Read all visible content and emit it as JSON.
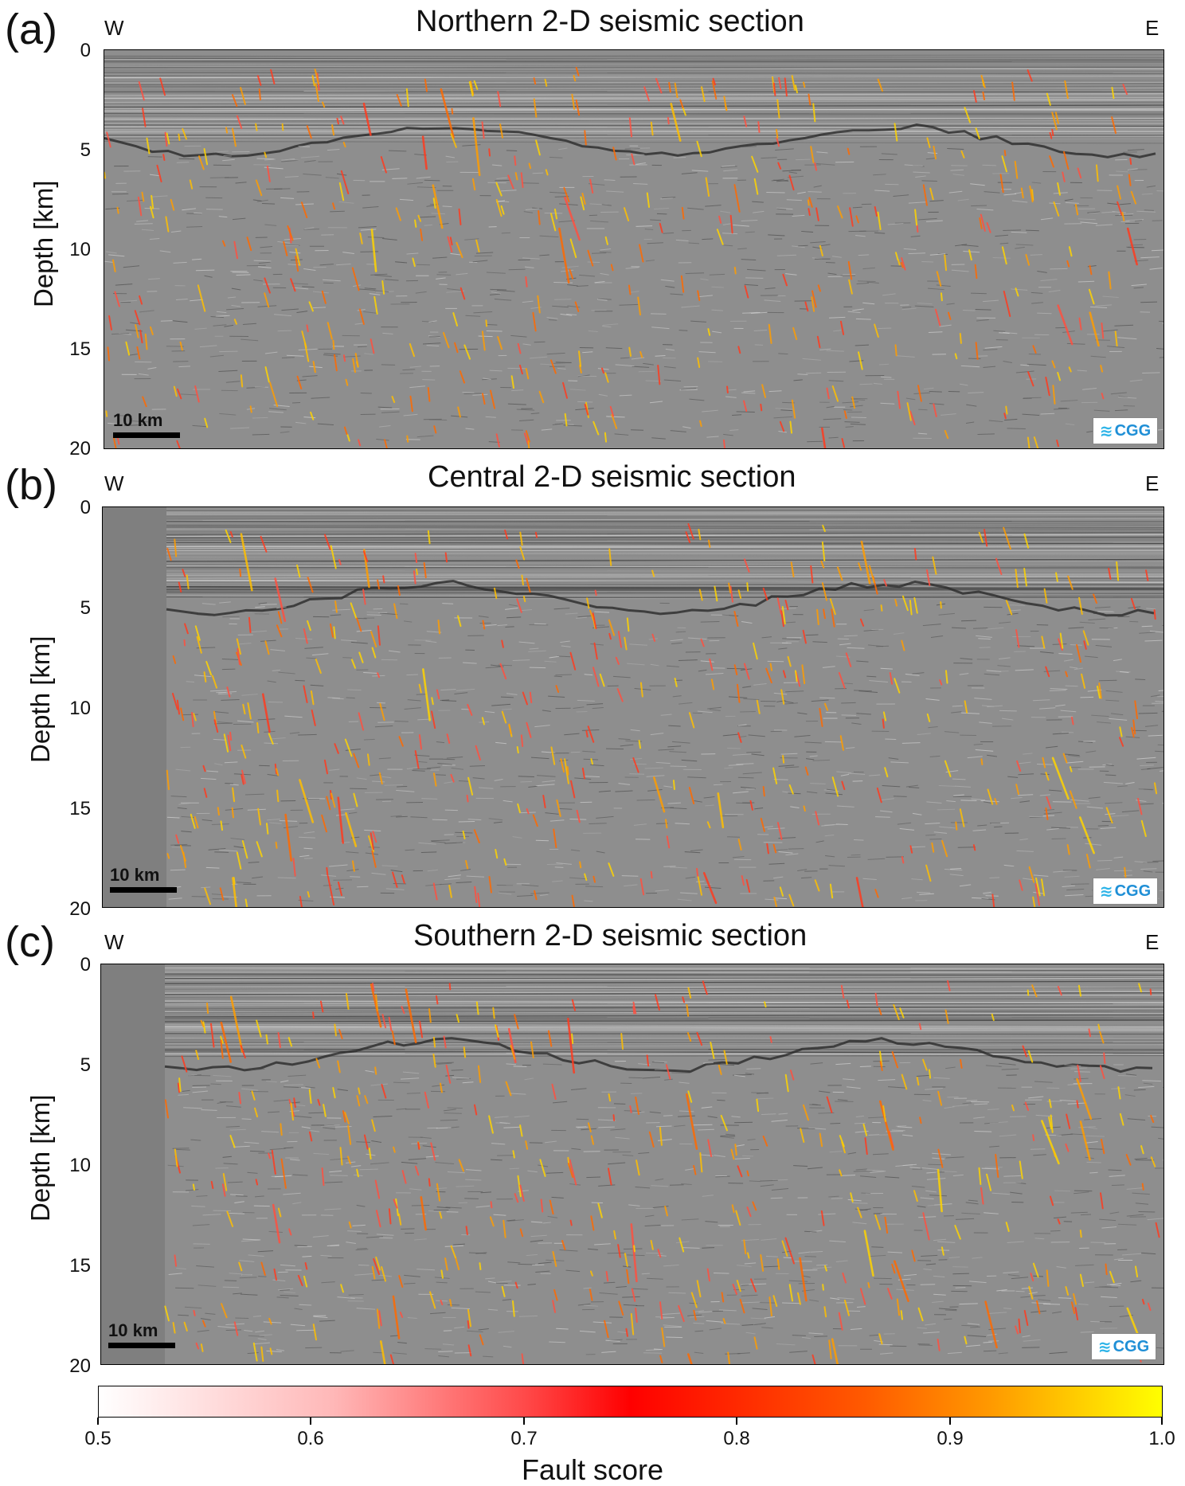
{
  "panels": [
    {
      "label": "(a)",
      "title": "Northern 2-D seismic section",
      "west": "W",
      "east": "E",
      "ylabel": "Depth [km]",
      "yticks": [
        "0",
        "5",
        "10",
        "15",
        "20"
      ],
      "scale_label": "10 km",
      "logo_text": "CGG"
    },
    {
      "label": "(b)",
      "title": "Central 2-D seismic section",
      "west": "W",
      "east": "E",
      "ylabel": "Depth [km]",
      "yticks": [
        "0",
        "5",
        "10",
        "15",
        "20"
      ],
      "scale_label": "10 km",
      "logo_text": "CGG"
    },
    {
      "label": "(c)",
      "title": "Southern 2-D seismic section",
      "west": "W",
      "east": "E",
      "ylabel": "Depth [km]",
      "yticks": [
        "0",
        "5",
        "10",
        "15",
        "20"
      ],
      "scale_label": "10 km",
      "logo_text": "CGG"
    }
  ],
  "colorbar": {
    "label": "Fault score",
    "ticks": [
      "0.5",
      "0.6",
      "0.7",
      "0.8",
      "0.9",
      "1.0"
    ],
    "range": [
      0.5,
      1.0
    ],
    "colors": [
      "#ffffff",
      "#ff0000",
      "#ffff00"
    ]
  }
}
